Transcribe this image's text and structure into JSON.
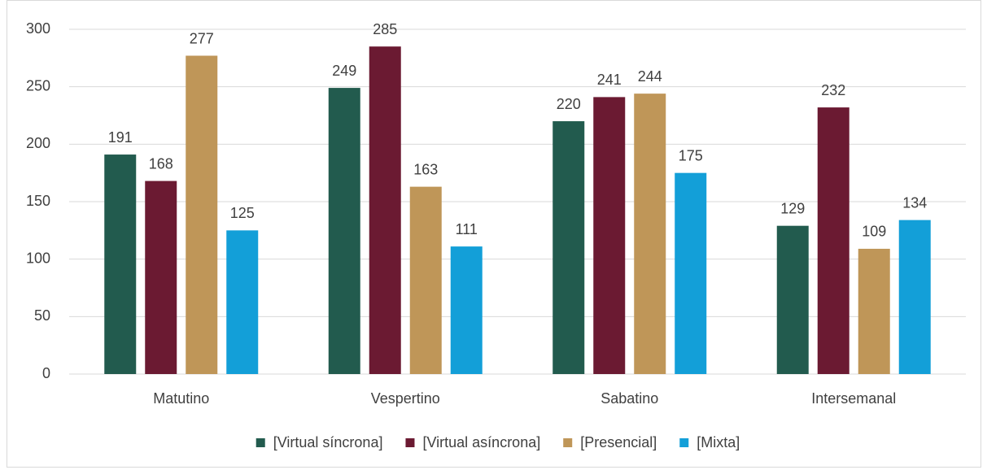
{
  "chart_data": {
    "type": "bar",
    "categories": [
      "Matutino",
      "Vespertino",
      "Sabatino",
      "Intersemanal"
    ],
    "series": [
      {
        "name": "[Virtual síncrona]",
        "color": "#225b4e",
        "values": [
          191,
          249,
          220,
          129
        ]
      },
      {
        "name": "[Virtual asíncrona]",
        "color": "#6b1a32",
        "values": [
          168,
          285,
          241,
          232
        ]
      },
      {
        "name": "[Presencial]",
        "color": "#bf9658",
        "values": [
          277,
          163,
          244,
          109
        ]
      },
      {
        "name": "[Mixta]",
        "color": "#139fd8",
        "values": [
          125,
          111,
          175,
          134
        ]
      }
    ],
    "ylim": [
      0,
      300
    ],
    "yticks": [
      0,
      50,
      100,
      150,
      200,
      250,
      300
    ],
    "grid": true,
    "legend": "bottom"
  }
}
